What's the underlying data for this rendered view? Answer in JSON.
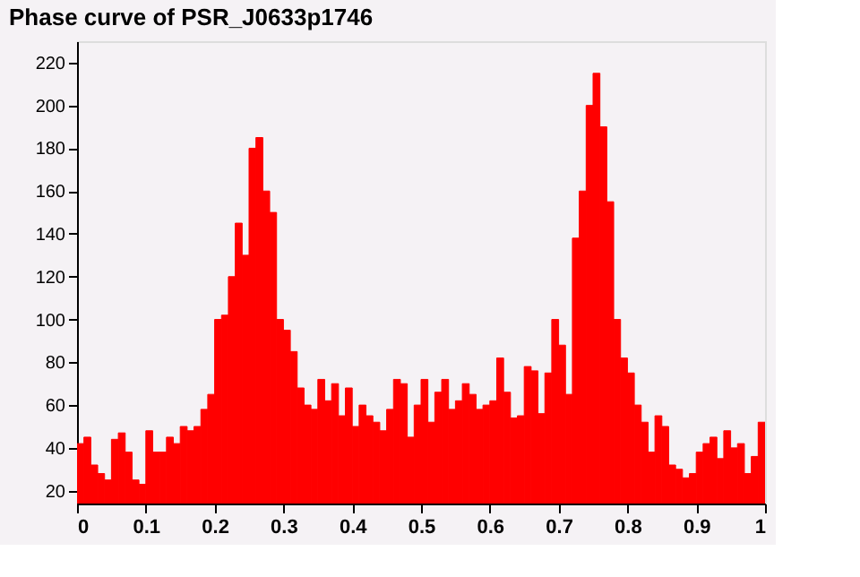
{
  "chart_data": {
    "type": "histogram",
    "title": "Phase curve of PSR_J0633p1746",
    "bins": [
      0,
      0.01,
      0.02,
      0.03,
      0.04,
      0.05,
      0.06,
      0.07,
      0.08,
      0.09,
      0.1,
      0.11,
      0.12,
      0.13,
      0.14,
      0.15,
      0.16,
      0.17,
      0.18,
      0.19,
      0.2,
      0.21,
      0.22,
      0.23,
      0.24,
      0.25,
      0.26,
      0.27,
      0.28,
      0.29,
      0.3,
      0.31,
      0.32,
      0.33,
      0.34,
      0.35,
      0.36,
      0.37,
      0.38,
      0.39,
      0.4,
      0.41,
      0.42,
      0.43,
      0.44,
      0.45,
      0.46,
      0.47,
      0.48,
      0.49,
      0.5,
      0.51,
      0.52,
      0.53,
      0.54,
      0.55,
      0.56,
      0.57,
      0.58,
      0.59,
      0.6,
      0.61,
      0.62,
      0.63,
      0.64,
      0.65,
      0.66,
      0.67,
      0.68,
      0.69,
      0.7,
      0.71,
      0.72,
      0.73,
      0.74,
      0.75,
      0.76,
      0.77,
      0.78,
      0.79,
      0.8,
      0.81,
      0.82,
      0.83,
      0.84,
      0.85,
      0.86,
      0.87,
      0.88,
      0.89,
      0.9,
      0.91,
      0.92,
      0.93,
      0.94,
      0.95,
      0.96,
      0.97,
      0.98,
      0.99,
      1
    ],
    "values": [
      42,
      45,
      32,
      28,
      25,
      44,
      47,
      38,
      25,
      23,
      48,
      38,
      38,
      45,
      42,
      50,
      48,
      50,
      58,
      65,
      100,
      102,
      120,
      145,
      130,
      180,
      185,
      160,
      150,
      100,
      95,
      85,
      68,
      60,
      58,
      72,
      62,
      70,
      55,
      68,
      50,
      60,
      55,
      52,
      48,
      58,
      72,
      70,
      45,
      60,
      72,
      52,
      66,
      72,
      58,
      62,
      70,
      65,
      58,
      60,
      62,
      82,
      66,
      54,
      55,
      78,
      76,
      56,
      75,
      100,
      88,
      65,
      138,
      160,
      200,
      215,
      190,
      155,
      100,
      82,
      75,
      60,
      52,
      38,
      55,
      50,
      32,
      30,
      26,
      28,
      38,
      42,
      45,
      35,
      48,
      40,
      42,
      28,
      36,
      52
    ],
    "color": "#ff0000",
    "xlim": [
      0,
      1
    ],
    "xticks": [
      0,
      0.1,
      0.2,
      0.3,
      0.4,
      0.5,
      0.6,
      0.7,
      0.8,
      0.9,
      1
    ],
    "ylim": [
      14,
      230
    ],
    "yticks": [
      20,
      40,
      60,
      80,
      100,
      120,
      140,
      160,
      180,
      200,
      220
    ],
    "grid": false
  }
}
